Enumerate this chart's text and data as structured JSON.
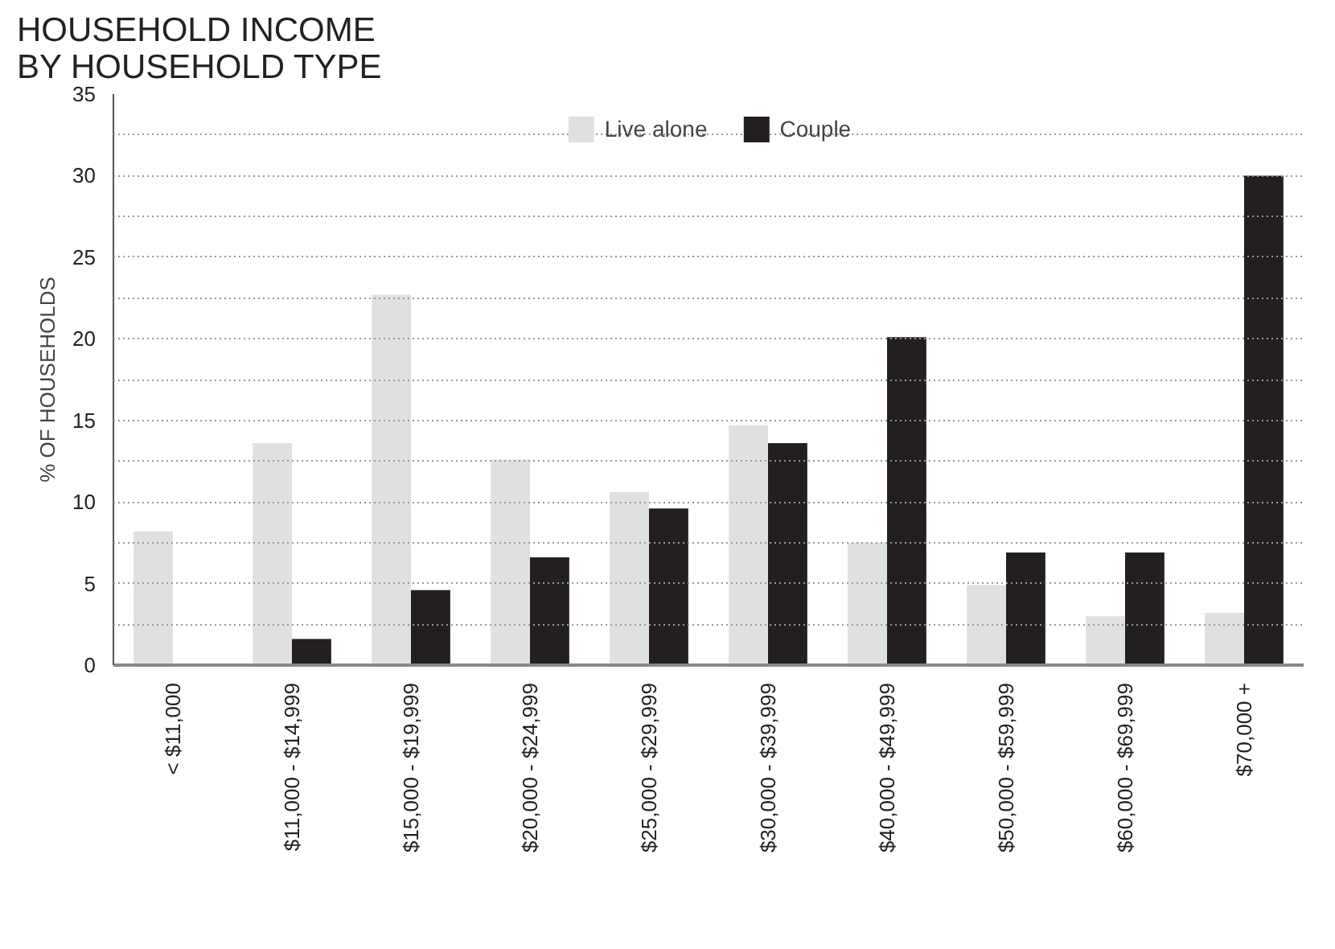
{
  "chart_data": {
    "type": "bar",
    "title": "HOUSEHOLD INCOME\nBY HOUSEHOLD TYPE",
    "ylabel": "% OF HOUSEHOLDS",
    "categories": [
      "< $11,000",
      "$11,000 - $14,999",
      "$15,000 - $19,999",
      "$20,000 - $24,999",
      "$25,000 - $29,999",
      "$30,000 - $39,999",
      "$40,000 - $49,999",
      "$50,000 - $59,999",
      "$60,000 - $69,999",
      "$70,000 +"
    ],
    "series": [
      {
        "name": "Live alone",
        "color": "#dfe0e1",
        "values": [
          8.2,
          13.6,
          22.7,
          12.6,
          10.6,
          14.7,
          7.5,
          4.9,
          3.0,
          3.2
        ]
      },
      {
        "name": "Couple",
        "color": "#231f20",
        "values": [
          0,
          1.6,
          4.6,
          6.6,
          9.6,
          13.6,
          20.1,
          6.9,
          6.9,
          30
        ]
      }
    ],
    "ylim": [
      0,
      35
    ],
    "yticks": [
      0,
      {
        "value": 2.5,
        "label": null
      },
      5,
      {
        "value": 7.5,
        "label": null
      },
      10,
      {
        "value": 12.5,
        "label": null
      },
      15,
      {
        "value": 17.5,
        "label": null
      },
      20,
      {
        "value": 22.5,
        "label": null
      },
      25,
      {
        "value": 27.5,
        "label": null
      },
      30,
      {
        "value": 32.5,
        "label": null
      },
      35
    ],
    "grid": "y",
    "legend": "top"
  }
}
